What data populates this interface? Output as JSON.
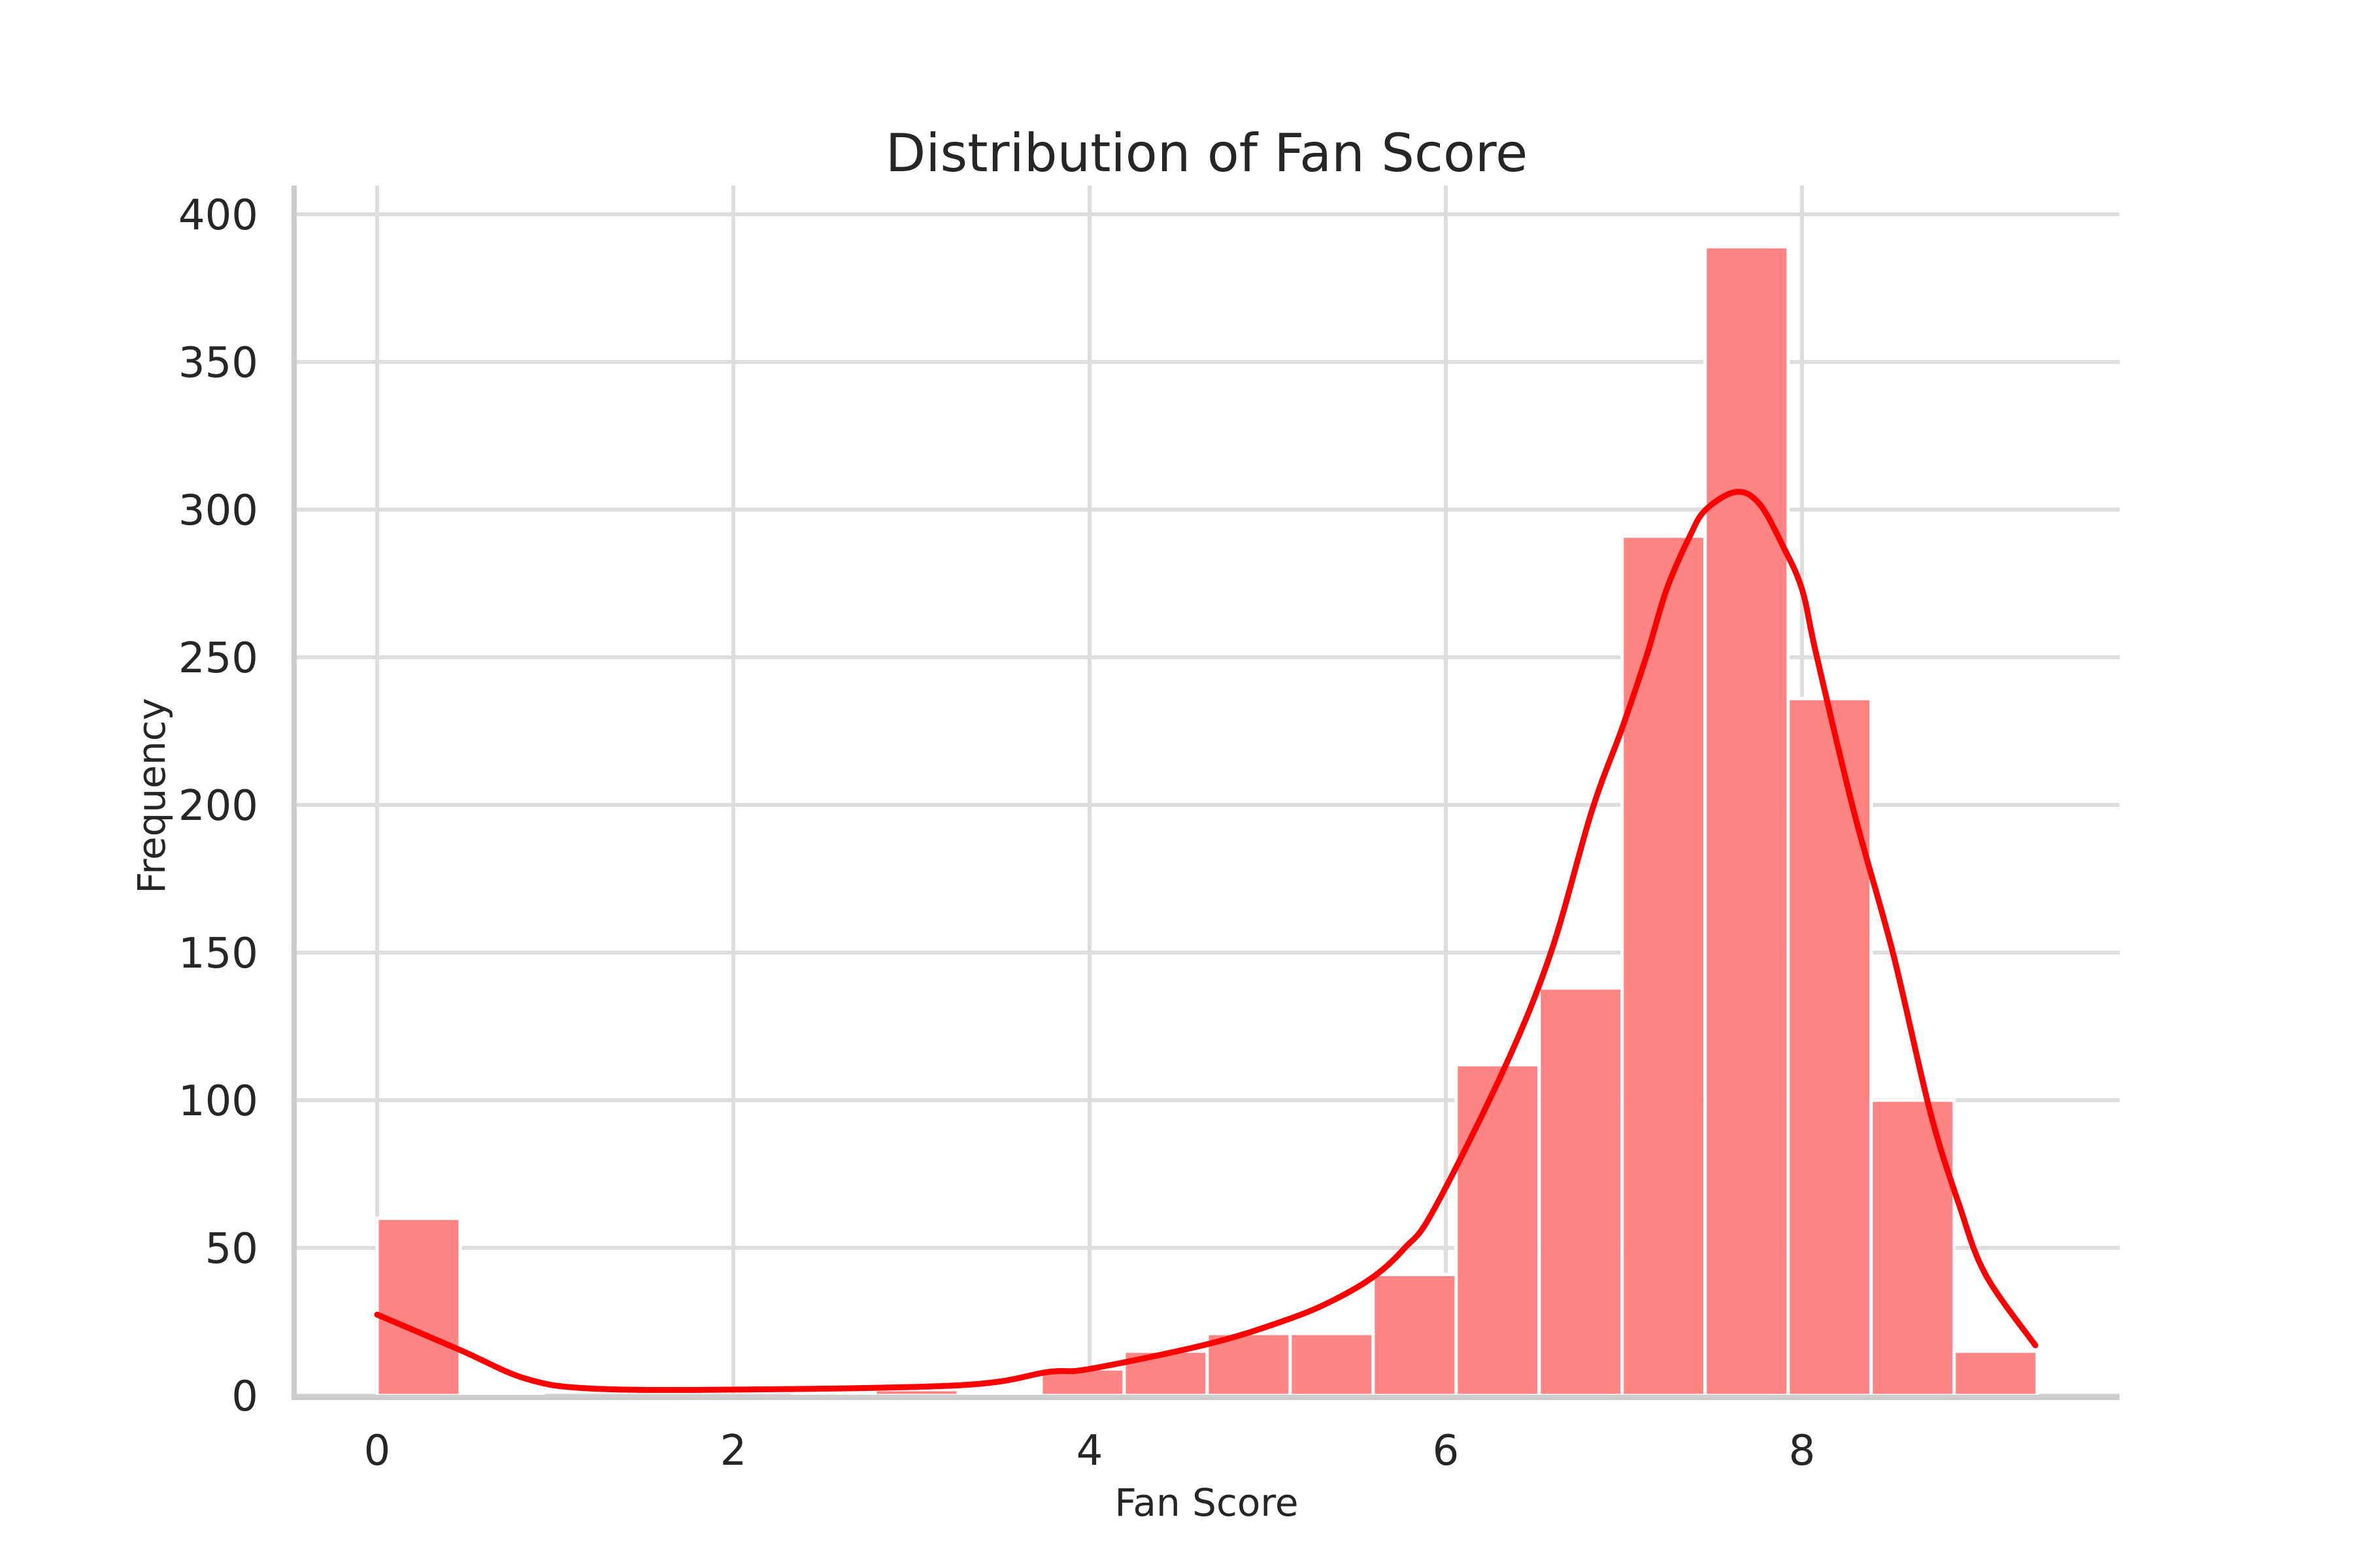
{
  "chart_data": {
    "type": "bar",
    "subtype": "histogram_with_kde",
    "title": "Distribution of Fan Score",
    "xlabel": "Fan Score",
    "ylabel": "Frequency",
    "xlim": [
      -0.47,
      9.78
    ],
    "ylim": [
      0,
      410
    ],
    "xticks": [
      0,
      2,
      4,
      6,
      8
    ],
    "xtick_labels": [
      "0",
      "2",
      "4",
      "6",
      "8"
    ],
    "yticks": [
      0,
      50,
      100,
      150,
      200,
      250,
      300,
      350,
      400
    ],
    "ytick_labels": [
      "0",
      "50",
      "100",
      "150",
      "200",
      "250",
      "300",
      "350",
      "400"
    ],
    "grid": true,
    "legend": null,
    "bin_width": 0.466,
    "bin_edges": [
      0,
      0.466,
      0.932,
      1.398,
      1.864,
      2.33,
      2.796,
      3.262,
      3.728,
      4.194,
      4.66,
      5.126,
      5.592,
      6.058,
      6.524,
      6.99,
      7.456,
      7.922,
      8.388,
      8.854,
      9.32
    ],
    "counts": [
      60,
      1,
      0,
      0,
      0,
      1,
      2,
      1,
      9,
      15,
      21,
      21,
      41,
      112,
      138,
      291,
      389,
      236,
      100,
      15
    ],
    "series": [
      {
        "name": "Histogram",
        "type": "bar",
        "color": "#ff8080",
        "values": [
          60,
          1,
          0,
          0,
          0,
          1,
          2,
          1,
          9,
          15,
          21,
          21,
          41,
          112,
          138,
          291,
          389,
          236,
          100,
          15
        ]
      },
      {
        "name": "KDE",
        "type": "line",
        "color": "#ff0000",
        "x": [
          0,
          0.47,
          0.83,
          1.19,
          1.97,
          3.28,
          3.77,
          4.0,
          4.67,
          5.11,
          5.37,
          5.6,
          5.77,
          5.93,
          6.33,
          6.59,
          6.82,
          6.99,
          7.13,
          7.24,
          7.37,
          7.46,
          7.63,
          7.76,
          7.89,
          8.0,
          8.08,
          8.29,
          8.51,
          8.72,
          8.88,
          9.03,
          9.31
        ],
        "y": [
          27.4,
          15.3,
          5.8,
          2.4,
          2.0,
          3.5,
          8.0,
          9.0,
          17.5,
          25.7,
          32.3,
          40.5,
          50,
          62.6,
          111,
          150,
          198,
          226,
          251,
          273,
          291,
          300,
          306,
          302,
          288,
          273,
          251,
          198,
          150,
          96,
          65,
          41,
          17
        ]
      }
    ]
  },
  "colors": {
    "bar_fill": "#ff8080",
    "bar_edge": "#ffffff",
    "kde_line": "#ff0000",
    "grid": "#dddddd",
    "spine": "#cccccc",
    "text": "#262626",
    "background": "#ffffff"
  }
}
